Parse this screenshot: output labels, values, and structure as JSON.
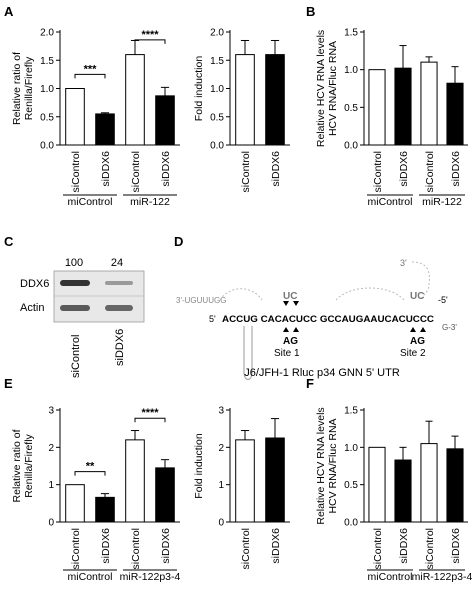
{
  "panel_letters": [
    "A",
    "B",
    "C",
    "D",
    "E",
    "F"
  ],
  "chart_data": [
    {
      "panel": "A",
      "type": "bar",
      "categories": [
        "siControl",
        "siDDX6",
        "siControl",
        "siDDX6"
      ],
      "groups": [
        "miControl",
        "miR-122"
      ],
      "values": [
        1.0,
        0.55,
        1.6,
        0.87
      ],
      "errors": [
        0.0,
        0.02,
        0.25,
        0.15
      ],
      "fills": [
        "white",
        "black",
        "white",
        "black"
      ],
      "ylabel": "Relative ratio of Renilla/Firefly",
      "ylim": [
        0,
        2.0
      ],
      "yticks": [
        "0.0",
        "0.5",
        "1.0",
        "1.5",
        "2.0"
      ],
      "significance": [
        "***",
        "****"
      ]
    },
    {
      "panel": "A-fold",
      "type": "bar",
      "categories": [
        "siControl",
        "siDDX6"
      ],
      "values": [
        1.6,
        1.6
      ],
      "errors": [
        0.25,
        0.25
      ],
      "fills": [
        "white",
        "black"
      ],
      "ylabel": "Fold induction",
      "ylim": [
        0,
        2.0
      ],
      "yticks": [
        "0.0",
        "0.5",
        "1.0",
        "1.5",
        "2.0"
      ]
    },
    {
      "panel": "B",
      "type": "bar",
      "categories": [
        "siControl",
        "siDDX6",
        "siControl",
        "siDDX6"
      ],
      "groups": [
        "miControl",
        "miR-122"
      ],
      "values": [
        1.0,
        1.02,
        1.1,
        0.82
      ],
      "errors": [
        0.0,
        0.3,
        0.07,
        0.22
      ],
      "fills": [
        "white",
        "black",
        "white",
        "black"
      ],
      "ylabel": "Relative HCV RNA levels HCV RNA/Fluc RNA",
      "ylim": [
        0,
        1.5
      ],
      "yticks": [
        "0.0",
        "0.5",
        "1.0",
        "1.5"
      ]
    },
    {
      "panel": "E",
      "type": "bar",
      "categories": [
        "siControl",
        "siDDX6",
        "siControl",
        "siDDX6"
      ],
      "groups": [
        "miControl",
        "miR-122p3-4"
      ],
      "values": [
        1.0,
        0.66,
        2.2,
        1.45
      ],
      "errors": [
        0.0,
        0.1,
        0.25,
        0.22
      ],
      "fills": [
        "white",
        "black",
        "white",
        "black"
      ],
      "ylabel": "Relative ratio of Renilla/Firefly",
      "ylim": [
        0,
        3
      ],
      "yticks": [
        "0",
        "1",
        "2",
        "3"
      ],
      "significance": [
        "**",
        "****"
      ]
    },
    {
      "panel": "E-fold",
      "type": "bar",
      "categories": [
        "siControl",
        "siDDX6"
      ],
      "values": [
        2.2,
        2.25
      ],
      "errors": [
        0.25,
        0.52
      ],
      "fills": [
        "white",
        "black"
      ],
      "ylabel": "Fold induction",
      "ylim": [
        0,
        3
      ],
      "yticks": [
        "0",
        "1",
        "2",
        "3"
      ]
    },
    {
      "panel": "F",
      "type": "bar",
      "categories": [
        "siControl",
        "siDDX6",
        "siControl",
        "siDDX6"
      ],
      "groups": [
        "miControl",
        "miR-122p3-4"
      ],
      "values": [
        1.0,
        0.83,
        1.05,
        0.98
      ],
      "errors": [
        0.0,
        0.17,
        0.3,
        0.17
      ],
      "fills": [
        "white",
        "black",
        "white",
        "black"
      ],
      "ylabel": "Relative HCV RNA levels HCV RNA/Fluc RNA",
      "ylim": [
        0,
        1.5
      ],
      "yticks": [
        "0.0",
        "0.5",
        "1.0",
        "1.5"
      ]
    }
  ],
  "blot": {
    "quant": [
      "100",
      "24"
    ],
    "row_labels": [
      "DDX6",
      "Actin"
    ],
    "lane_labels": [
      "siControl",
      "siDDX6"
    ]
  },
  "utr_diagram": {
    "caption": "J6/JFH-1 Rluc p34 GNN 5' UTR",
    "site1": "Site 1",
    "site2": "Site 2",
    "five_prime": "5'",
    "three_prime_top": "3'",
    "left_3prime_strand": "3'-UGUUUGG",
    "top_5prime": "-5'",
    "right_3prime": "G-3'",
    "main_sequence": "ACCUG  CACACUCC GCCAUGAAUCACUCCC",
    "site1_mirna": "UC",
    "site1_mutation": "AG",
    "site2_mirna": "UC",
    "site2_mutation": "AG"
  }
}
